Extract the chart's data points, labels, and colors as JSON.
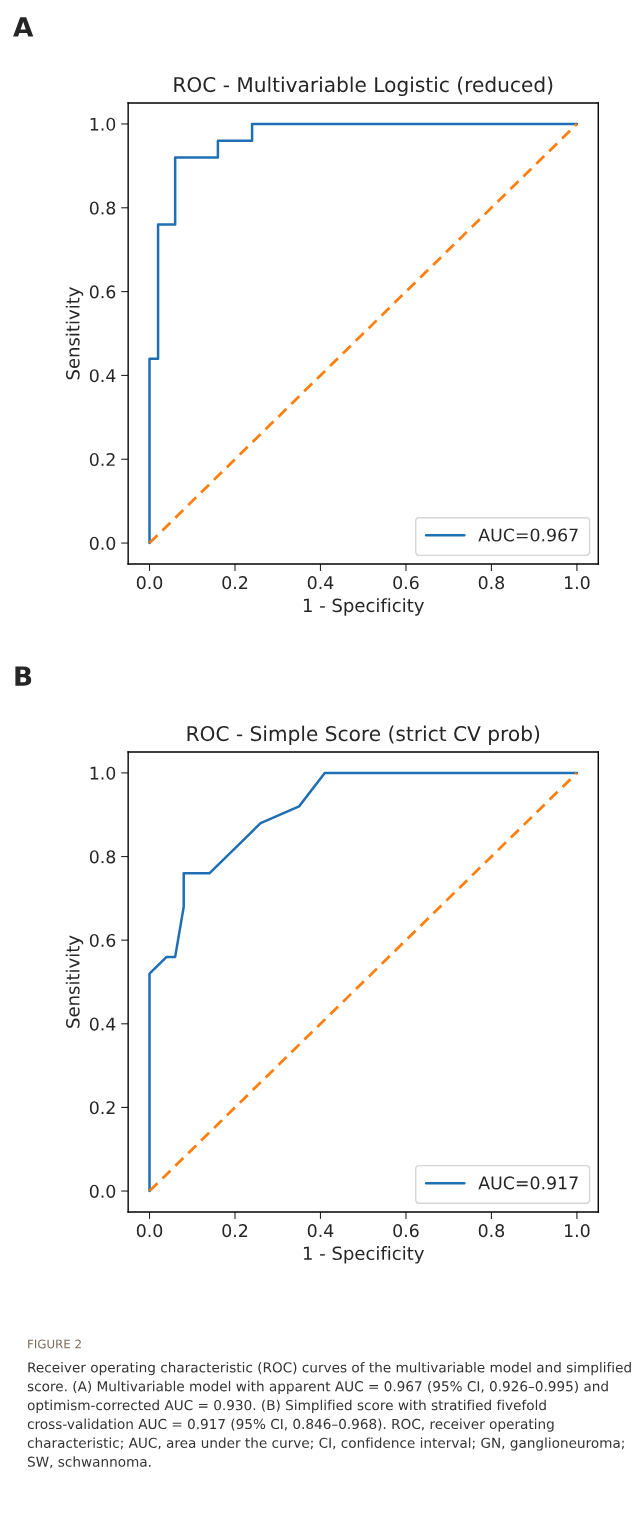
{
  "chart_data": [
    {
      "type": "line",
      "title": "ROC - Multivariable Logistic (reduced)",
      "xlabel": "1 - Specificity",
      "ylabel": "Sensitivity",
      "annotations": [
        "A"
      ],
      "series": [
        {
          "name": "AUC=0.967",
          "color": "#1f6fb4",
          "line_style": "solid",
          "x": [
            0,
            0,
            0.02,
            0.02,
            0.06,
            0.06,
            0.16,
            0.16,
            0.24,
            0.24,
            1
          ],
          "values": [
            0,
            0.44,
            0.44,
            0.76,
            0.76,
            0.92,
            0.92,
            0.96,
            0.96,
            1.0,
            1.0
          ]
        },
        {
          "color": "#ff7f0e",
          "line_style": "dashed",
          "x": [
            0,
            1
          ],
          "values": [
            0,
            1
          ]
        }
      ],
      "xlim": [
        -0.05,
        1.05
      ],
      "ylim": [
        -0.05,
        1.05
      ],
      "xticks": [
        {
          "value": 0,
          "label": "0.0"
        },
        {
          "value": 0.2,
          "label": "0.2"
        },
        {
          "value": 0.4,
          "label": "0.4"
        },
        {
          "value": 0.6,
          "label": "0.6"
        },
        {
          "value": 0.8,
          "label": "0.8"
        },
        {
          "value": 1,
          "label": "1.0"
        }
      ],
      "yticks": [
        {
          "value": 0,
          "label": "0.0"
        },
        {
          "value": 0.2,
          "label": "0.2"
        },
        {
          "value": 0.4,
          "label": "0.4"
        },
        {
          "value": 0.6,
          "label": "0.6"
        },
        {
          "value": 0.8,
          "label": "0.8"
        },
        {
          "value": 1,
          "label": "1.0"
        }
      ],
      "grid": false,
      "legend": "bottom right",
      "marker": "none"
    },
    {
      "type": "line",
      "title": "ROC - Simple Score (strict CV prob)",
      "xlabel": "1 - Specificity",
      "ylabel": "Sensitivity",
      "annotations": [
        "B",
        "FIGURE 2",
        "Receiver operating characteristic (ROC) curves of the multivariable model and simplified score. (A) Multivariable model with apparent AUC = 0.967 (95% CI, 0.926–0.995) and optimism-corrected AUC = 0.930. (B) Simplified score with stratified fivefold cross-validation AUC = 0.917 (95% CI, 0.846–0.968). ROC, receiver operating characteristic; AUC, area under the curve; CI, confidence interval; GN, ganglioneuroma; SW, schwannoma."
      ],
      "series": [
        {
          "name": "AUC=0.917",
          "color": "#1f6fb4",
          "line_style": "solid",
          "x": [
            0,
            0,
            0.04,
            0.06,
            0.08,
            0.08,
            0.14,
            0.26,
            0.35,
            0.41,
            1
          ],
          "values": [
            0,
            0.52,
            0.56,
            0.56,
            0.68,
            0.76,
            0.76,
            0.88,
            0.92,
            1.0,
            1.0
          ]
        },
        {
          "color": "#ff7f0e",
          "line_style": "dashed",
          "x": [
            0,
            1
          ],
          "values": [
            0,
            1
          ]
        }
      ],
      "xlim": [
        -0.05,
        1.05
      ],
      "ylim": [
        -0.05,
        1.05
      ],
      "xticks": [
        {
          "value": 0,
          "label": "0.0"
        },
        {
          "value": 0.2,
          "label": "0.2"
        },
        {
          "value": 0.4,
          "label": "0.4"
        },
        {
          "value": 0.6,
          "label": "0.6"
        },
        {
          "value": 0.8,
          "label": "0.8"
        },
        {
          "value": 1,
          "label": "1.0"
        }
      ],
      "yticks": [
        {
          "value": 0,
          "label": "0.0"
        },
        {
          "value": 0.2,
          "label": "0.2"
        },
        {
          "value": 0.4,
          "label": "0.4"
        },
        {
          "value": 0.6,
          "label": "0.6"
        },
        {
          "value": 0.8,
          "label": "0.8"
        },
        {
          "value": 1,
          "label": "1.0"
        }
      ],
      "grid": false,
      "legend": "bottom right",
      "marker": "none"
    }
  ]
}
